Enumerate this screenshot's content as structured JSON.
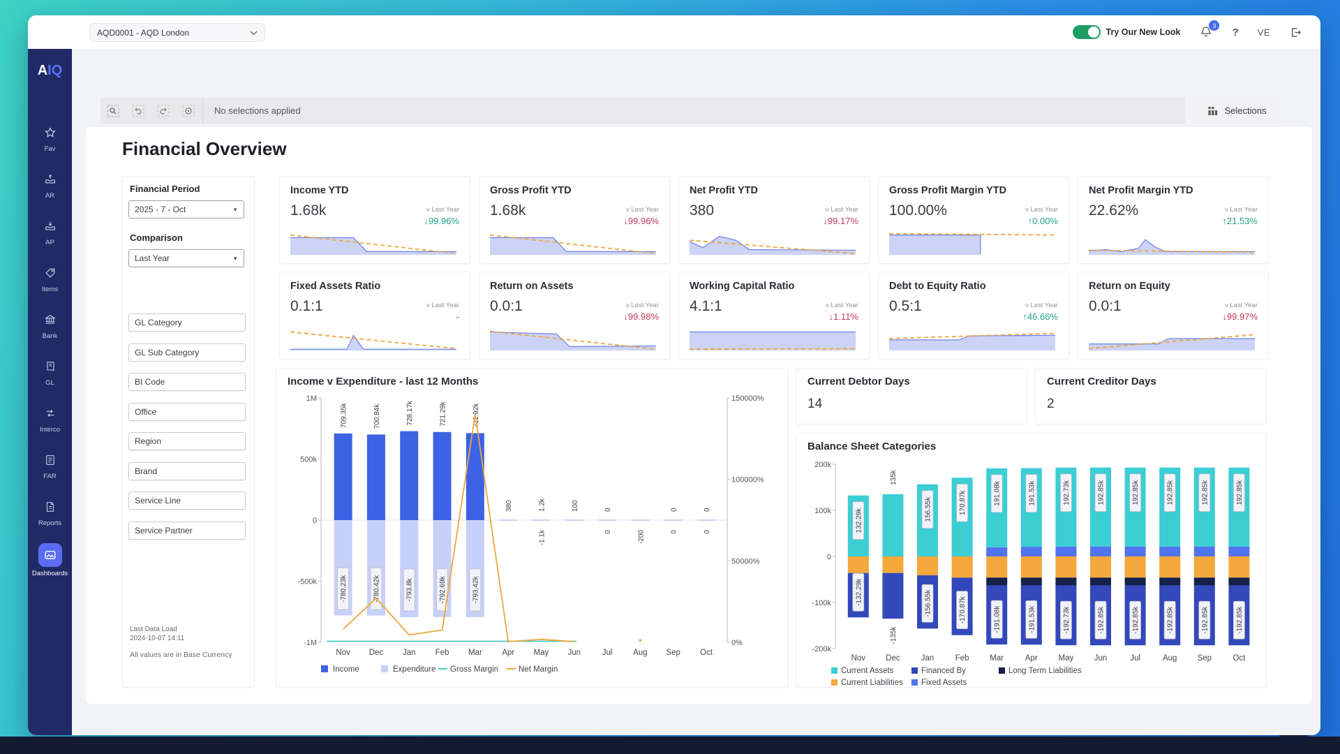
{
  "topbar": {
    "company_selector": "AQD0001 - AQD London",
    "toggle_label": "Try Our New Look",
    "notification_count": "3",
    "help_label": "?",
    "user_initials": "VE"
  },
  "sidebar": {
    "logo_a": "A",
    "logo_iq": "IQ",
    "items": [
      {
        "label": "Fav"
      },
      {
        "label": "AR"
      },
      {
        "label": "AP"
      },
      {
        "label": "Items"
      },
      {
        "label": "Bank"
      },
      {
        "label": "GL"
      },
      {
        "label": "Interco"
      },
      {
        "label": "FAR"
      },
      {
        "label": "Reports"
      },
      {
        "label": "Dashboards",
        "active": true
      }
    ]
  },
  "toolbar": {
    "status": "No selections applied",
    "selections_label": "Selections"
  },
  "page": {
    "title": "Financial Overview"
  },
  "filters": {
    "financial_period_label": "Financial Period",
    "financial_period_value": "2025 - 7 - Oct",
    "comparison_label": "Comparison",
    "comparison_value": "Last Year",
    "fields": [
      "GL Category",
      "GL Sub Category",
      "BI Code",
      "Office",
      "Region",
      "Brand",
      "Service Line",
      "Service Partner"
    ],
    "last_data_load_label": "Last Data Load",
    "last_data_load_value": "2024-10-07 14:11",
    "base_currency_note": "All values are in Base Currency"
  },
  "kpis": {
    "compare_label": "v Last Year",
    "cards": [
      {
        "title": "Income YTD",
        "value": "1.68k",
        "delta": "↓99.96%",
        "delta_color": "#1fa188",
        "spark": "plateau"
      },
      {
        "title": "Gross Profit YTD",
        "value": "1.68k",
        "delta": "↓99.96%",
        "delta_color": "#bf3a5e",
        "spark": "plateau"
      },
      {
        "title": "Net Profit YTD",
        "value": "380",
        "delta": "↓99.17%",
        "delta_color": "#bf3a5e",
        "spark": "bumpy"
      },
      {
        "title": "Gross Profit Margin YTD",
        "value": "100.00%",
        "delta": "↑0.00%",
        "delta_color": "#1fa188",
        "spark": "halfblock"
      },
      {
        "title": "Net Profit Margin YTD",
        "value": "22.62%",
        "delta": "↑21.53%",
        "delta_color": "#1fa188",
        "spark": "peak"
      },
      {
        "title": "Fixed Assets Ratio",
        "value": "0.1:1",
        "delta": "-",
        "delta_color": "#bf3a5e",
        "spark": "spike"
      },
      {
        "title": "Return on Assets",
        "value": "0.0:1",
        "delta": "↓99.98%",
        "delta_color": "#bf3a5e",
        "spark": "plateau2"
      },
      {
        "title": "Working Capital Ratio",
        "value": "4.1:1",
        "delta": "↓1.11%",
        "delta_color": "#bf3a5e",
        "spark": "fullblock"
      },
      {
        "title": "Debt to Equity Ratio",
        "value": "0.5:1",
        "delta": "↑46.66%",
        "delta_color": "#1fa188",
        "spark": "stepup"
      },
      {
        "title": "Return on Equity",
        "value": "0.0:1",
        "delta": "↓99.97%",
        "delta_color": "#bf3a5e",
        "spark": "stepup2"
      }
    ],
    "sparks": {
      "plateau": {
        "pts": [
          [
            0,
            12
          ],
          [
            38,
            12
          ],
          [
            46,
            33
          ],
          [
            100,
            33
          ]
        ],
        "trend": [
          [
            0,
            8
          ],
          [
            100,
            36
          ]
        ]
      },
      "bumpy": {
        "pts": [
          [
            0,
            18
          ],
          [
            8,
            27
          ],
          [
            18,
            10
          ],
          [
            28,
            16
          ],
          [
            36,
            30
          ],
          [
            100,
            31
          ]
        ],
        "trend": [
          [
            0,
            16
          ],
          [
            100,
            36
          ]
        ]
      },
      "halfblock": {
        "pts": [
          [
            0,
            8
          ],
          [
            55,
            8
          ],
          [
            55,
            37
          ]
        ],
        "trend": [
          [
            0,
            6
          ],
          [
            100,
            8
          ]
        ]
      },
      "peak": {
        "pts": [
          [
            0,
            32
          ],
          [
            10,
            30
          ],
          [
            20,
            33
          ],
          [
            30,
            28
          ],
          [
            34,
            15
          ],
          [
            40,
            26
          ],
          [
            46,
            33
          ],
          [
            100,
            33
          ]
        ],
        "trend": [
          [
            0,
            31
          ],
          [
            100,
            34
          ]
        ]
      },
      "spike": {
        "pts": [
          [
            0,
            36
          ],
          [
            34,
            36
          ],
          [
            38,
            15
          ],
          [
            44,
            36
          ],
          [
            100,
            36
          ]
        ],
        "trend": [
          [
            0,
            10
          ],
          [
            100,
            35
          ]
        ]
      },
      "plateau2": {
        "pts": [
          [
            0,
            10
          ],
          [
            40,
            13
          ],
          [
            48,
            32
          ],
          [
            100,
            31
          ]
        ],
        "trend": [
          [
            0,
            9
          ],
          [
            100,
            36
          ]
        ]
      },
      "fullblock": {
        "pts": [
          [
            0,
            10
          ],
          [
            100,
            10
          ]
        ],
        "trend": [
          [
            0,
            36
          ],
          [
            100,
            35
          ]
        ]
      },
      "stepup": {
        "pts": [
          [
            0,
            22
          ],
          [
            42,
            22
          ],
          [
            48,
            16
          ],
          [
            100,
            15
          ]
        ],
        "trend": [
          [
            0,
            20
          ],
          [
            100,
            12
          ]
        ]
      },
      "stepup2": {
        "pts": [
          [
            0,
            28
          ],
          [
            42,
            28
          ],
          [
            48,
            20
          ],
          [
            100,
            20
          ]
        ],
        "trend": [
          [
            0,
            35
          ],
          [
            100,
            14
          ]
        ]
      }
    }
  },
  "cards": {
    "debtor": {
      "title": "Current Debtor Days",
      "value": "14"
    },
    "creditor": {
      "title": "Current Creditor Days",
      "value": "2"
    }
  },
  "chart_data": [
    {
      "id": "income_v_expenditure",
      "type": "bar",
      "title": "Income v Expenditure - last 12 Months",
      "categories": [
        "Nov",
        "Dec",
        "Jan",
        "Feb",
        "Mar",
        "Apr",
        "May",
        "Jun",
        "Jul",
        "Aug",
        "Sep",
        "Oct"
      ],
      "left_axis": {
        "ticks": [
          "1M",
          "500k",
          "0",
          "-500k",
          "-1M"
        ],
        "min_k": -1000,
        "max_k": 1000
      },
      "right_axis": {
        "ticks": [
          "150000%",
          "100000%",
          "50000%",
          "0%"
        ],
        "min_pct": 0,
        "max_pct": 150000
      },
      "series": [
        {
          "name": "Income",
          "type": "bar",
          "color": "#3d62e4",
          "values_k": [
            709.35,
            700.84,
            728.17,
            721.29,
            711.92,
            0.38,
            1.2,
            0.1,
            0,
            0,
            0,
            0
          ],
          "labels": [
            "709.35k",
            "700.84k",
            "728.17k",
            "721.29k",
            "711.92k",
            "380",
            "1.2k",
            "100",
            "0",
            "",
            "0",
            "0"
          ]
        },
        {
          "name": "Expenditure",
          "type": "bar",
          "color": "#c7d0f8",
          "values_k": [
            -780.23,
            -780.42,
            -793.8,
            -792.69,
            -793.42,
            0,
            -1.1,
            0,
            0,
            -0.2,
            0,
            0
          ],
          "labels": [
            "-780.23k",
            "-780.42k",
            "-793.8k",
            "-792.69k",
            "-793.42k",
            "",
            "-1.1k",
            "",
            "0",
            "-200",
            "0",
            "0"
          ]
        },
        {
          "name": "Gross Margin",
          "type": "line",
          "color": "#4fcac2",
          "values_pct": [
            0,
            0,
            0,
            0,
            0,
            0,
            0,
            0,
            null,
            null,
            null,
            null
          ]
        },
        {
          "name": "Net Margin",
          "type": "line",
          "color": "#eda63e",
          "values_pct": [
            8000,
            27000,
            4500,
            7500,
            140000,
            400,
            1800,
            400,
            null,
            1200,
            null,
            null
          ]
        }
      ],
      "legend": [
        "Income",
        "Expenditure",
        "Gross Margin",
        "Net Margin"
      ]
    },
    {
      "id": "balance_sheet_categories",
      "type": "stacked-bar",
      "title": "Balance Sheet Categories",
      "categories": [
        "Nov",
        "Dec",
        "Jan",
        "Feb",
        "Mar",
        "Apr",
        "May",
        "Jun",
        "Jul",
        "Aug",
        "Sep",
        "Oct"
      ],
      "y_axis": {
        "ticks": [
          "200k",
          "100k",
          "0",
          "-100k",
          "-200k"
        ],
        "min_k": -200,
        "max_k": 200
      },
      "totals_labels_pos": [
        "132.29k",
        "135k",
        "156.55k",
        "170.87k",
        "191.08k",
        "191.53k",
        "192.73k",
        "192.85k",
        "192.85k",
        "192.85k",
        "192.85k",
        "192.85k"
      ],
      "totals_labels_neg": [
        "-132.29k",
        "-135k",
        "-156.55k",
        "-170.87k",
        "-191.08k",
        "-191.53k",
        "-192.73k",
        "-192.85k",
        "-192.85k",
        "-192.85k",
        "-192.85k",
        "-192.85k"
      ],
      "series": [
        {
          "name": "Fixed Assets",
          "color": "#5273ee",
          "stack": "pos",
          "values_k": [
            0,
            0,
            0,
            0,
            20,
            21,
            21.5,
            21.5,
            21.5,
            21.5,
            21.5,
            21.5
          ]
        },
        {
          "name": "Current Assets",
          "color": "#3bced3",
          "stack": "pos",
          "values_k": [
            132.29,
            135,
            156.55,
            170.87,
            171.08,
            170.53,
            171.23,
            171.35,
            171.35,
            171.35,
            171.35,
            171.35
          ]
        },
        {
          "name": "Current Liabilities",
          "color": "#f5a83c",
          "stack": "neg",
          "values_k": [
            -36,
            -36,
            -41,
            -46,
            -46,
            -46,
            -46,
            -46,
            -46,
            -46,
            -46,
            -46
          ]
        },
        {
          "name": "Long Term Liabilities",
          "color": "#15204b",
          "stack": "neg",
          "values_k": [
            0,
            0,
            0,
            0,
            -17,
            -17,
            -17,
            -17,
            -17,
            -17,
            -17,
            -17
          ]
        },
        {
          "name": "Financed By",
          "color": "#3348bb",
          "stack": "neg",
          "values_k": [
            -96.29,
            -99,
            -115.55,
            -124.87,
            -128.08,
            -128.53,
            -129.73,
            -129.85,
            -129.85,
            -129.85,
            -129.85,
            -129.85
          ]
        }
      ],
      "legend_rows": [
        [
          "Current Assets",
          "Financed By",
          "Long Term Liabilities"
        ],
        [
          "Current Liabilities",
          "Fixed Assets"
        ]
      ]
    }
  ]
}
